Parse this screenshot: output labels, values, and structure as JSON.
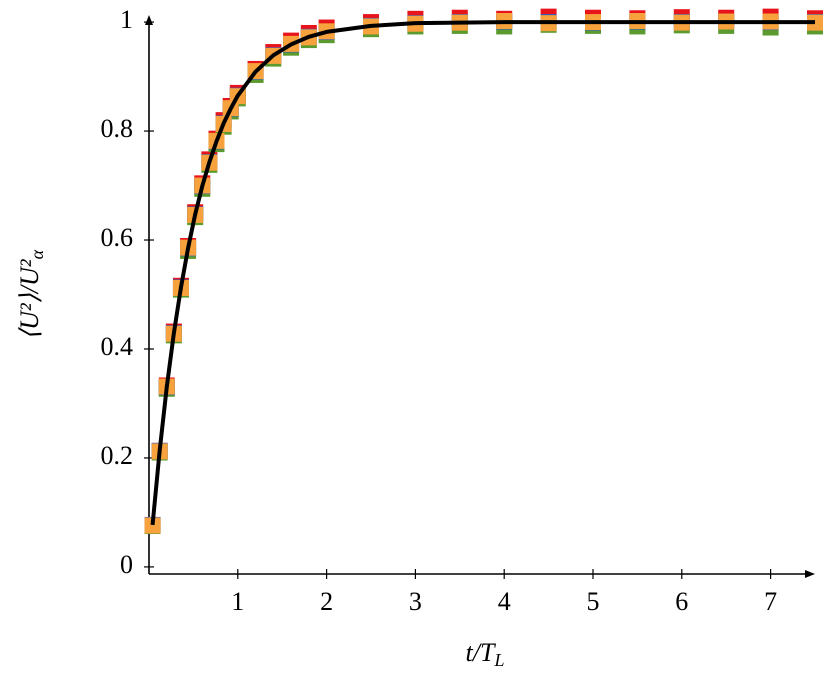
{
  "chart_data": {
    "type": "line",
    "x_label": "t/T",
    "x_label_sub": "L",
    "y_label": "⟨U²⟩/U²",
    "y_label_sub": "α",
    "x": [
      0.04,
      0.12,
      0.2,
      0.28,
      0.36,
      0.44,
      0.52,
      0.6,
      0.68,
      0.76,
      0.84,
      0.92,
      1.0,
      1.2,
      1.4,
      1.6,
      1.8,
      2.0,
      2.5,
      3,
      3.5,
      4,
      4.5,
      5,
      5.5,
      6,
      6.5,
      7,
      7.5
    ],
    "series": [
      {
        "name": "red",
        "color": "#e8141c",
        "marker": "square",
        "values": [
          0.077,
          0.213,
          0.333,
          0.432,
          0.516,
          0.589,
          0.651,
          0.704,
          0.748,
          0.786,
          0.82,
          0.846,
          0.87,
          0.914,
          0.945,
          0.966,
          0.98,
          0.99,
          1.0,
          1.006,
          1.008,
          1.006,
          1.01,
          1.008,
          1.007,
          1.009,
          1.008,
          1.01,
          1.007
        ]
      },
      {
        "name": "green",
        "color": "#5a9a2e",
        "marker": "square",
        "values": [
          0.075,
          0.21,
          0.327,
          0.425,
          0.509,
          0.58,
          0.642,
          0.694,
          0.738,
          0.776,
          0.808,
          0.836,
          0.86,
          0.903,
          0.933,
          0.953,
          0.967,
          0.976,
          0.987,
          0.992,
          0.993,
          0.992,
          0.995,
          0.993,
          0.992,
          0.994,
          0.993,
          0.99,
          0.992
        ]
      },
      {
        "name": "blue",
        "color": "#2f5fc0",
        "marker": "square",
        "values": [
          0.077,
          0.213,
          0.33,
          0.429,
          0.513,
          0.585,
          0.647,
          0.699,
          0.743,
          0.781,
          0.814,
          0.841,
          0.865,
          0.909,
          0.939,
          0.959,
          0.973,
          0.982,
          0.993,
          0.998,
          1.0,
          1.001,
          1.0,
          0.999,
          1.001,
          1.0,
          1.001,
          1.0,
          1.0
        ]
      },
      {
        "name": "orange",
        "color": "#f7a23c",
        "marker": "square",
        "values": [
          0.076,
          0.212,
          0.331,
          0.428,
          0.512,
          0.586,
          0.646,
          0.7,
          0.742,
          0.782,
          0.813,
          0.842,
          0.864,
          0.91,
          0.938,
          0.96,
          0.972,
          0.983,
          0.992,
          0.997,
          0.999,
          1.002,
          0.998,
          1.0,
          1.002,
          0.999,
          1.001,
          1.001,
          0.999
        ]
      },
      {
        "name": "fit",
        "color": "#000000",
        "marker": "none",
        "values": [
          0.077,
          0.213,
          0.33,
          0.429,
          0.513,
          0.585,
          0.647,
          0.699,
          0.743,
          0.781,
          0.814,
          0.841,
          0.865,
          0.909,
          0.939,
          0.959,
          0.973,
          0.982,
          0.993,
          0.998,
          0.999,
          1.0,
          1.0,
          1.0,
          1.0,
          1.0,
          1.0,
          1.0,
          1.0
        ]
      }
    ],
    "xlim": [
      0,
      7.5
    ],
    "ylim": [
      -0.013,
      1.013
    ],
    "xticks": [
      1,
      2,
      3,
      4,
      5,
      6,
      7
    ],
    "yticks": [
      0,
      0.2,
      0.4,
      0.6,
      0.8,
      1
    ]
  }
}
